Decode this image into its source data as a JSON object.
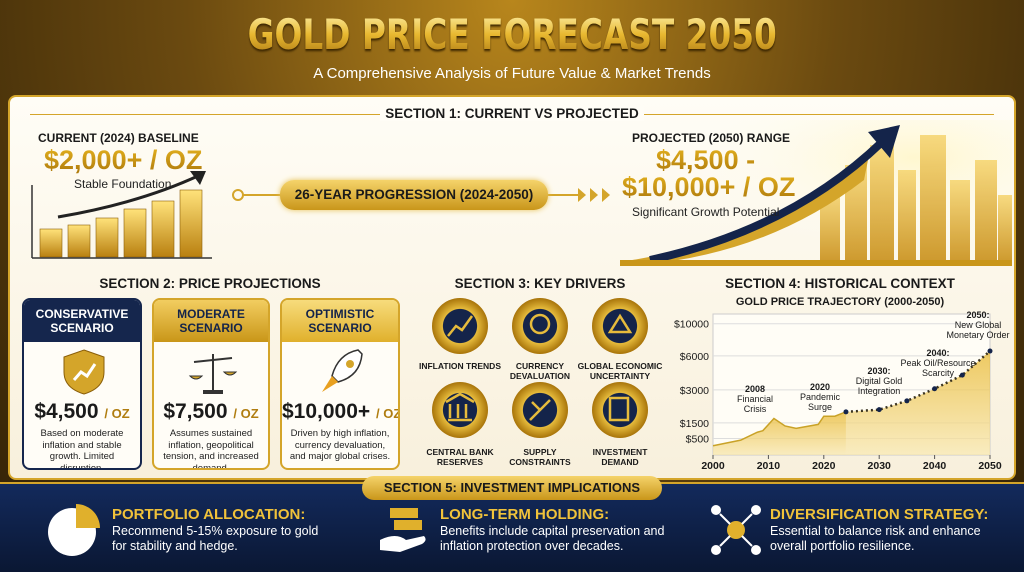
{
  "header": {
    "title": "GOLD PRICE FORECAST 2050",
    "subtitle": "A Comprehensive Analysis of Future Value & Market Trends"
  },
  "section1": {
    "heading": "SECTION 1: CURRENT VS PROJECTED",
    "current": {
      "label": "CURRENT (2024) BASELINE",
      "value": "$2,000+ / OZ",
      "note": "Stable Foundation"
    },
    "progression": "26-YEAR PROGRESSION (2024-2050)",
    "projected": {
      "label": "PROJECTED (2050) RANGE",
      "value_line1": "$4,500 -",
      "value_line2": "$10,000+ / OZ",
      "note": "Significant Growth Potential"
    }
  },
  "section2": {
    "heading": "SECTION 2: PRICE PROJECTIONS",
    "scenarios": [
      {
        "name": "CONSERVATIVE SCENARIO",
        "price": "$4,500",
        "unit": "/ OZ",
        "description": "Based on moderate inflation and stable growth. Limited disruption."
      },
      {
        "name": "MODERATE SCENARIO",
        "price": "$7,500",
        "unit": "/ OZ",
        "description": "Assumes sustained inflation, geopolitical tension, and increased demand."
      },
      {
        "name": "OPTIMISTIC SCENARIO",
        "price": "$10,000+",
        "unit": "/ OZ",
        "description": "Driven by high inflation, currency devaluation, and major global crises."
      }
    ]
  },
  "section3": {
    "heading": "SECTION 3: KEY DRIVERS",
    "drivers": [
      "INFLATION TRENDS",
      "CURRENCY DEVALUATION",
      "GLOBAL ECONOMIC UNCERTAINTY",
      "CENTRAL BANK RESERVES",
      "SUPPLY CONSTRAINTS",
      "INVESTMENT DEMAND"
    ]
  },
  "section4": {
    "heading": "SECTION 4: HISTORICAL CONTEXT"
  },
  "chart_data": {
    "type": "line",
    "title": "GOLD PRICE TRAJECTORY (2000-2050)",
    "xlim": [
      2000,
      2050
    ],
    "xticks": [
      2000,
      2010,
      2020,
      2030,
      2040,
      2050
    ],
    "ylim": [
      0,
      11000
    ],
    "yticks": [
      {
        "value": 500,
        "label": "$500"
      },
      {
        "value": 1500,
        "label": "$1500"
      },
      {
        "value": 3000,
        "label": "$3000"
      },
      {
        "value": 6000,
        "label": "$6000"
      },
      {
        "value": 10000,
        "label": "$10000"
      }
    ],
    "grid": true,
    "series": [
      {
        "color": "#c9a227",
        "x": [
          2000,
          2005,
          2008,
          2009,
          2011,
          2013,
          2015,
          2019,
          2020,
          2022,
          2024
        ],
        "values": [
          280,
          450,
          900,
          1000,
          1700,
          1300,
          1150,
          1400,
          1800,
          1800,
          2000
        ]
      },
      {
        "color": "#3a3320",
        "dashed": true,
        "x": [
          2024,
          2030,
          2035,
          2040,
          2045,
          2050
        ],
        "values": [
          2000,
          2100,
          2500,
          3100,
          4300,
          6600
        ]
      }
    ],
    "annotations": [
      {
        "lines": [
          "2008",
          "Financial",
          "Crisis"
        ]
      },
      {
        "lines": [
          "2020",
          "Pandemic",
          "Surge"
        ]
      },
      {
        "lines": [
          "2030:",
          "Digital Gold",
          "Integration"
        ]
      },
      {
        "lines": [
          "2040:",
          "Peak Oil/Resource",
          "Scarcity"
        ]
      },
      {
        "lines": [
          "2050:",
          "New Global",
          "Monetary Order"
        ]
      }
    ]
  },
  "section5": {
    "heading": "SECTION 5: INVESTMENT IMPLICATIONS",
    "items": [
      {
        "title": "PORTFOLIO ALLOCATION:",
        "text": "Recommend 5-15% exposure to gold for stability and hedge."
      },
      {
        "title": "LONG-TERM HOLDING:",
        "text": "Benefits include capital preservation and inflation protection over decades."
      },
      {
        "title": "DIVERSIFICATION STRATEGY:",
        "text": "Essential to balance risk and enhance overall portfolio resilience."
      }
    ]
  }
}
